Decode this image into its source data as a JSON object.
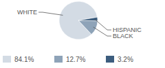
{
  "chart_data": {
    "type": "pie",
    "categories": [
      "WHITE",
      "BLACK",
      "HISPANIC"
    ],
    "values": [
      84.1,
      12.7,
      3.2
    ],
    "value_labels": [
      "84.1%",
      "12.7%",
      "3.2%"
    ],
    "colors": [
      "#d3dbe4",
      "#8ea3b8",
      "#3c5d7e"
    ]
  }
}
